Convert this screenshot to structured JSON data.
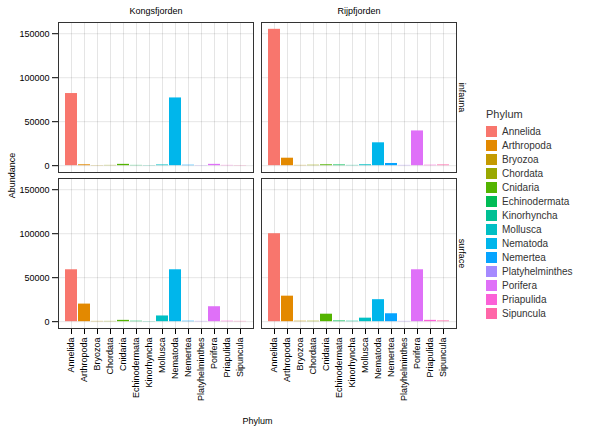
{
  "chart_data": {
    "type": "bar",
    "xlabel": "Phylum",
    "ylabel": "Abundance",
    "legend_title": "Phylum",
    "legend": "right",
    "grid": true,
    "categories": [
      "Annelida",
      "Arthropoda",
      "Bryozoa",
      "Chordata",
      "Cnidaria",
      "Echinodermata",
      "Kinorhyncha",
      "Mollusca",
      "Nematoda",
      "Nemertea",
      "Platyhelminthes",
      "Porifera",
      "Priapulida",
      "Sipuncula"
    ],
    "colors": [
      "#F8766D",
      "#E38900",
      "#C49A00",
      "#99A800",
      "#53B400",
      "#00BC56",
      "#00C094",
      "#00BFC4",
      "#00B6EB",
      "#06A4FF",
      "#A58AFF",
      "#DF70F8",
      "#FB61D7",
      "#FF66A8"
    ],
    "ylim": [
      -7750,
      162750
    ],
    "yticks": [
      0,
      50000,
      100000,
      150000
    ],
    "facets": [
      {
        "column": "Kongsfjorden",
        "row": "infauna",
        "values": [
          82000,
          1000,
          200,
          300,
          1500,
          300,
          200,
          800,
          77000,
          500,
          200,
          1500,
          300,
          200
        ]
      },
      {
        "column": "Rijpfjorden",
        "row": "infauna",
        "values": [
          155000,
          8500,
          300,
          500,
          1000,
          800,
          300,
          1000,
          26000,
          2500,
          300,
          39500,
          500,
          800
        ]
      },
      {
        "column": "Kongsfjorden",
        "row": "surface",
        "values": [
          59000,
          20000,
          300,
          300,
          1500,
          500,
          200,
          6500,
          59000,
          500,
          300,
          17000,
          500,
          300
        ]
      },
      {
        "column": "Rijpfjorden",
        "row": "surface",
        "values": [
          100000,
          29000,
          500,
          500,
          8500,
          800,
          500,
          4000,
          25000,
          9000,
          300,
          59000,
          1500,
          800
        ]
      }
    ]
  }
}
